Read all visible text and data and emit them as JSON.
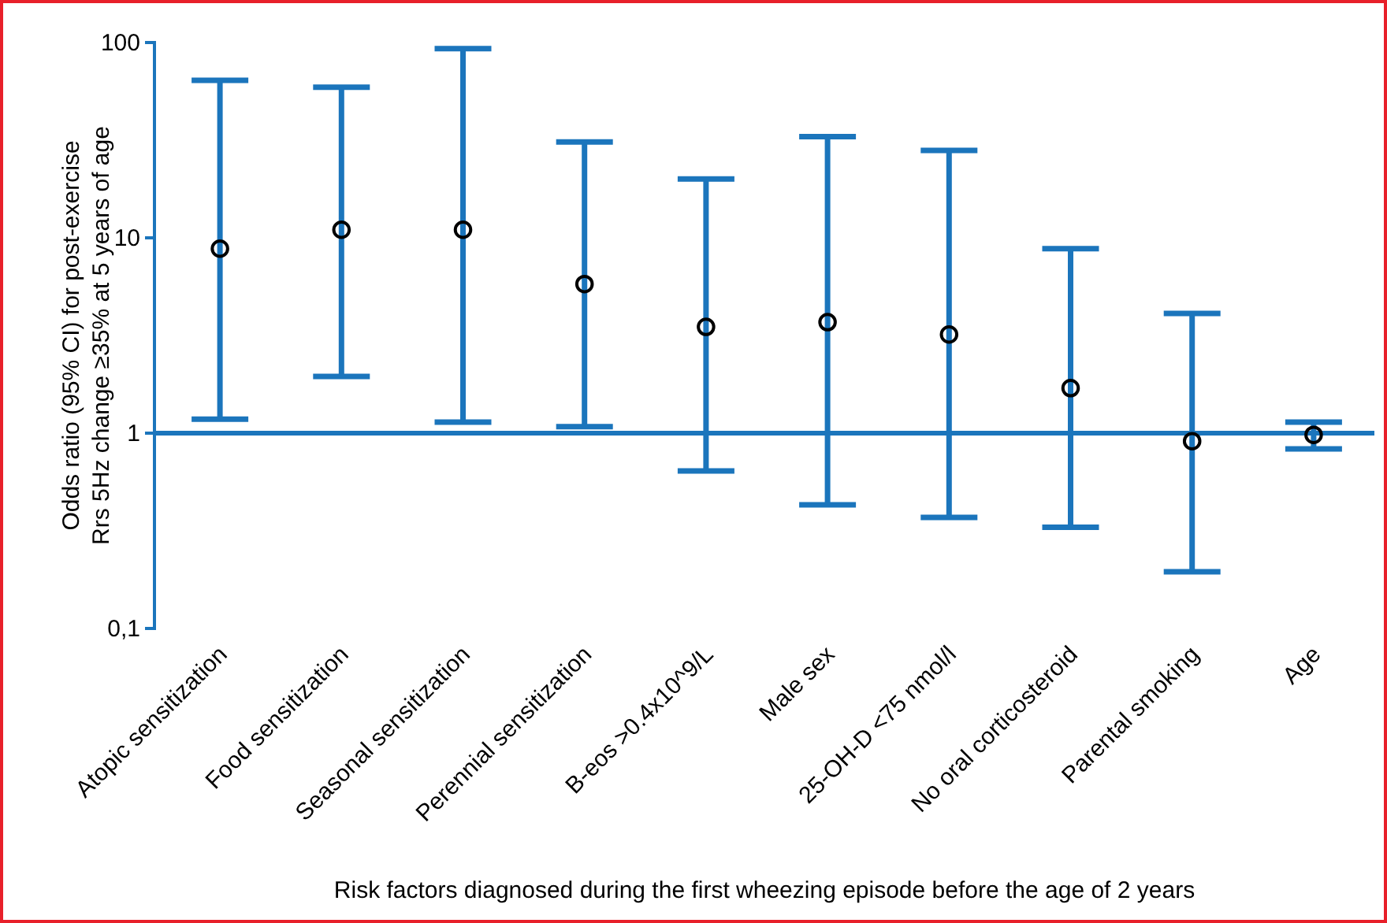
{
  "chart_data": {
    "type": "scatter",
    "xlabel": "Risk factors diagnosed during the first wheezing episode before the age of 2 years",
    "ylabel": "Odds ratio (95% CI) for post-exercise Rrs 5Hz change ≥35% at 5 years of age",
    "categories": [
      "Atopic sensitization",
      "Food sensitization",
      "Seasonal sensitization",
      "Perennial sensitization",
      "B-eos >0.4x10^9/L",
      "Male sex",
      "25-OH-D <75 nmol/l",
      "No oral corticosteroid",
      "Parental smoking",
      "Age"
    ],
    "series": [
      {
        "color": "#000000",
        "values": [
          8.8,
          11,
          11,
          5.8,
          3.5,
          3.7,
          3.2,
          1.7,
          0.91,
          0.98
        ],
        "errors": [
          [
            1.18,
            64
          ],
          [
            1.95,
            59
          ],
          [
            1.14,
            93
          ],
          [
            1.08,
            31
          ],
          [
            0.64,
            20
          ],
          [
            0.43,
            33
          ],
          [
            0.37,
            28
          ],
          [
            0.33,
            8.8
          ],
          [
            0.195,
            4.1
          ],
          [
            0.83,
            1.14
          ]
        ]
      }
    ],
    "log": true,
    "ylim": [
      0.1,
      100
    ],
    "yticks": [
      {
        "value": 0.1,
        "label": "0,1"
      },
      1,
      10,
      100
    ],
    "marker": "circle",
    "grid": false,
    "ref_lines": [
      {
        "axis": "y",
        "value": 1,
        "color": "#1b75bc"
      }
    ]
  }
}
